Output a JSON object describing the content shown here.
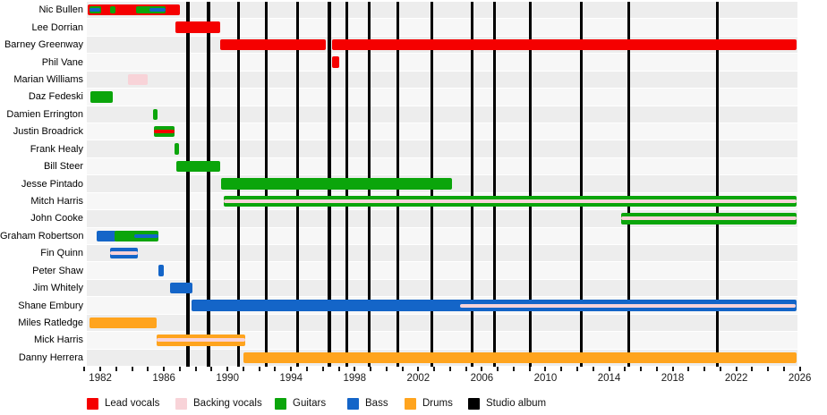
{
  "chart_data": {
    "type": "bar",
    "subtype": "band-member-timeline-gantt",
    "title": "",
    "grid": false,
    "legend_position": "bottom",
    "x_axis": {
      "min": 1981.15,
      "max": 2025.85,
      "labeled_ticks": [
        1982,
        1986,
        1990,
        1994,
        1998,
        2002,
        2006,
        2010,
        2014,
        2018,
        2022,
        2026
      ],
      "minor_tick_interval": 1,
      "minor_tick_start": 1981,
      "minor_tick_end": 2026
    },
    "roles": {
      "lead_vocals": {
        "label": "Lead vocals",
        "color": "#f50000"
      },
      "backing_vocals": {
        "label": "Backing vocals",
        "color": "#f8d3d8"
      },
      "guitars": {
        "label": "Guitars",
        "color": "#0ba50b"
      },
      "bass": {
        "label": "Bass",
        "color": "#1465c8"
      },
      "drums": {
        "label": "Drums",
        "color": "#ffa41e"
      },
      "studio_album": {
        "label": "Studio album",
        "color": "#000000"
      }
    },
    "members": [
      {
        "name": "Nic Bullen",
        "bars": [
          {
            "role": "lead_vocals",
            "start": 1981.2,
            "end": 1987.0,
            "size": "full"
          },
          {
            "role": "guitars",
            "start": 1981.3,
            "end": 1982.05,
            "size": "mid"
          },
          {
            "role": "bass",
            "start": 1981.3,
            "end": 1982.0,
            "size": "thin"
          },
          {
            "role": "guitars",
            "start": 1982.6,
            "end": 1982.95,
            "size": "mid"
          },
          {
            "role": "guitars",
            "start": 1984.25,
            "end": 1986.1,
            "size": "mid"
          },
          {
            "role": "bass",
            "start": 1985.1,
            "end": 1986.1,
            "size": "thin"
          }
        ]
      },
      {
        "name": "Lee Dorrian",
        "bars": [
          {
            "role": "lead_vocals",
            "start": 1986.75,
            "end": 1989.55,
            "size": "full"
          }
        ]
      },
      {
        "name": "Barney Greenway",
        "bars": [
          {
            "role": "lead_vocals",
            "start": 1989.55,
            "end": 1996.18,
            "size": "full"
          },
          {
            "role": "lead_vocals",
            "start": 1996.57,
            "end": 2025.82,
            "size": "full"
          }
        ]
      },
      {
        "name": "Phil Vane",
        "bars": [
          {
            "role": "lead_vocals",
            "start": 1996.57,
            "end": 1997.0,
            "size": "full"
          }
        ]
      },
      {
        "name": "Marian Williams",
        "bars": [
          {
            "role": "backing_vocals",
            "start": 1983.75,
            "end": 1985.0,
            "size": "full"
          }
        ]
      },
      {
        "name": "Daz Fedeski",
        "bars": [
          {
            "role": "guitars",
            "start": 1981.35,
            "end": 1982.8,
            "size": "full"
          }
        ]
      },
      {
        "name": "Damien Errington",
        "bars": [
          {
            "role": "guitars",
            "start": 1985.3,
            "end": 1985.6,
            "size": "full"
          }
        ]
      },
      {
        "name": "Justin Broadrick",
        "bars": [
          {
            "role": "guitars",
            "start": 1985.4,
            "end": 1986.65,
            "size": "full"
          },
          {
            "role": "lead_vocals",
            "start": 1985.4,
            "end": 1986.65,
            "size": "thin"
          }
        ]
      },
      {
        "name": "Frank Healy",
        "bars": [
          {
            "role": "guitars",
            "start": 1986.65,
            "end": 1986.95,
            "size": "full"
          }
        ]
      },
      {
        "name": "Bill Steer",
        "bars": [
          {
            "role": "guitars",
            "start": 1986.8,
            "end": 1989.55,
            "size": "full"
          }
        ]
      },
      {
        "name": "Jesse Pintado",
        "bars": [
          {
            "role": "guitars",
            "start": 1989.6,
            "end": 2004.1,
            "size": "full"
          }
        ]
      },
      {
        "name": "Mitch Harris",
        "bars": [
          {
            "role": "guitars",
            "start": 1989.75,
            "end": 2025.82,
            "size": "full"
          },
          {
            "role": "backing_vocals",
            "start": 1989.75,
            "end": 2025.82,
            "size": "thin"
          }
        ]
      },
      {
        "name": "John Cooke",
        "bars": [
          {
            "role": "guitars",
            "start": 2014.75,
            "end": 2025.82,
            "size": "full"
          },
          {
            "role": "backing_vocals",
            "start": 2014.75,
            "end": 2025.82,
            "size": "thin"
          }
        ]
      },
      {
        "name": "Graham Robertson",
        "bars": [
          {
            "role": "bass",
            "start": 1981.75,
            "end": 1983.0,
            "size": "full"
          },
          {
            "role": "guitars",
            "start": 1982.9,
            "end": 1985.65,
            "size": "full"
          },
          {
            "role": "bass",
            "start": 1984.15,
            "end": 1985.65,
            "size": "thin"
          }
        ]
      },
      {
        "name": "Fin Quinn",
        "bars": [
          {
            "role": "bass",
            "start": 1982.6,
            "end": 1984.35,
            "size": "full"
          },
          {
            "role": "backing_vocals",
            "start": 1982.6,
            "end": 1984.35,
            "size": "thin"
          }
        ]
      },
      {
        "name": "Peter Shaw",
        "bars": [
          {
            "role": "bass",
            "start": 1985.65,
            "end": 1986.0,
            "size": "full"
          }
        ]
      },
      {
        "name": "Jim Whitely",
        "bars": [
          {
            "role": "bass",
            "start": 1986.4,
            "end": 1987.8,
            "size": "full"
          }
        ]
      },
      {
        "name": "Shane Embury",
        "bars": [
          {
            "role": "bass",
            "start": 1987.75,
            "end": 2025.82,
            "size": "full"
          },
          {
            "role": "backing_vocals",
            "start": 2004.65,
            "end": 2025.75,
            "size": "thin"
          }
        ]
      },
      {
        "name": "Miles Ratledge",
        "bars": [
          {
            "role": "drums",
            "start": 1981.3,
            "end": 1985.55,
            "size": "full"
          }
        ]
      },
      {
        "name": "Mick Harris",
        "bars": [
          {
            "role": "drums",
            "start": 1985.55,
            "end": 1991.1,
            "size": "full"
          },
          {
            "role": "backing_vocals",
            "start": 1985.55,
            "end": 1991.1,
            "size": "thin"
          }
        ]
      },
      {
        "name": "Danny Herrera",
        "bars": [
          {
            "role": "drums",
            "start": 1991.0,
            "end": 2025.82,
            "size": "full"
          }
        ]
      }
    ],
    "album_lines": {
      "label": "Studio album",
      "color": "#000000",
      "years": [
        1987.5,
        1988.8,
        1990.7,
        1992.45,
        1994.4,
        1996.4,
        1997.5,
        1998.9,
        2000.7,
        2002.85,
        2005.4,
        2006.8,
        2009.05,
        2012.25,
        2015.25,
        2020.8
      ]
    },
    "legend": [
      {
        "role": "lead_vocals",
        "label": "Lead vocals"
      },
      {
        "role": "backing_vocals",
        "label": "Backing vocals"
      },
      {
        "role": "guitars",
        "label": "Guitars"
      },
      {
        "role": "bass",
        "label": "Bass"
      },
      {
        "role": "drums",
        "label": "Drums"
      },
      {
        "role": "studio_album",
        "label": "Studio album"
      }
    ],
    "row_stripe_colors": {
      "even": "#ededed",
      "odd": "#f7f7f7"
    }
  }
}
